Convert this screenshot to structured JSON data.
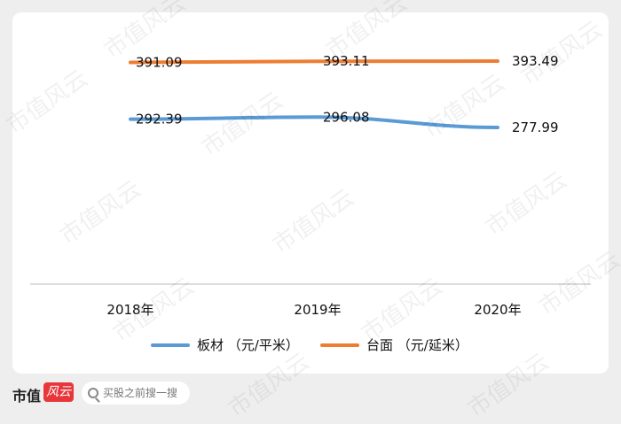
{
  "chart_data": {
    "type": "line",
    "categories": [
      "2018年",
      "2019年",
      "2020年"
    ],
    "series": [
      {
        "name": "板材 （元/平米）",
        "color": "#5b9bd5",
        "values": [
          292.39,
          296.08,
          277.99
        ],
        "labels": [
          "292.39",
          "296.08",
          "277.99"
        ]
      },
      {
        "name": "台面 （元/延米）",
        "color": "#ed7d31",
        "values": [
          391.09,
          393.11,
          393.49
        ],
        "labels": [
          "391.09",
          "393.11",
          "393.49"
        ]
      }
    ],
    "legend_position": "bottom",
    "grid": false
  },
  "watermark": "市值风云",
  "footer": {
    "brand": "市值",
    "search_placeholder": "买股之前搜一搜"
  }
}
